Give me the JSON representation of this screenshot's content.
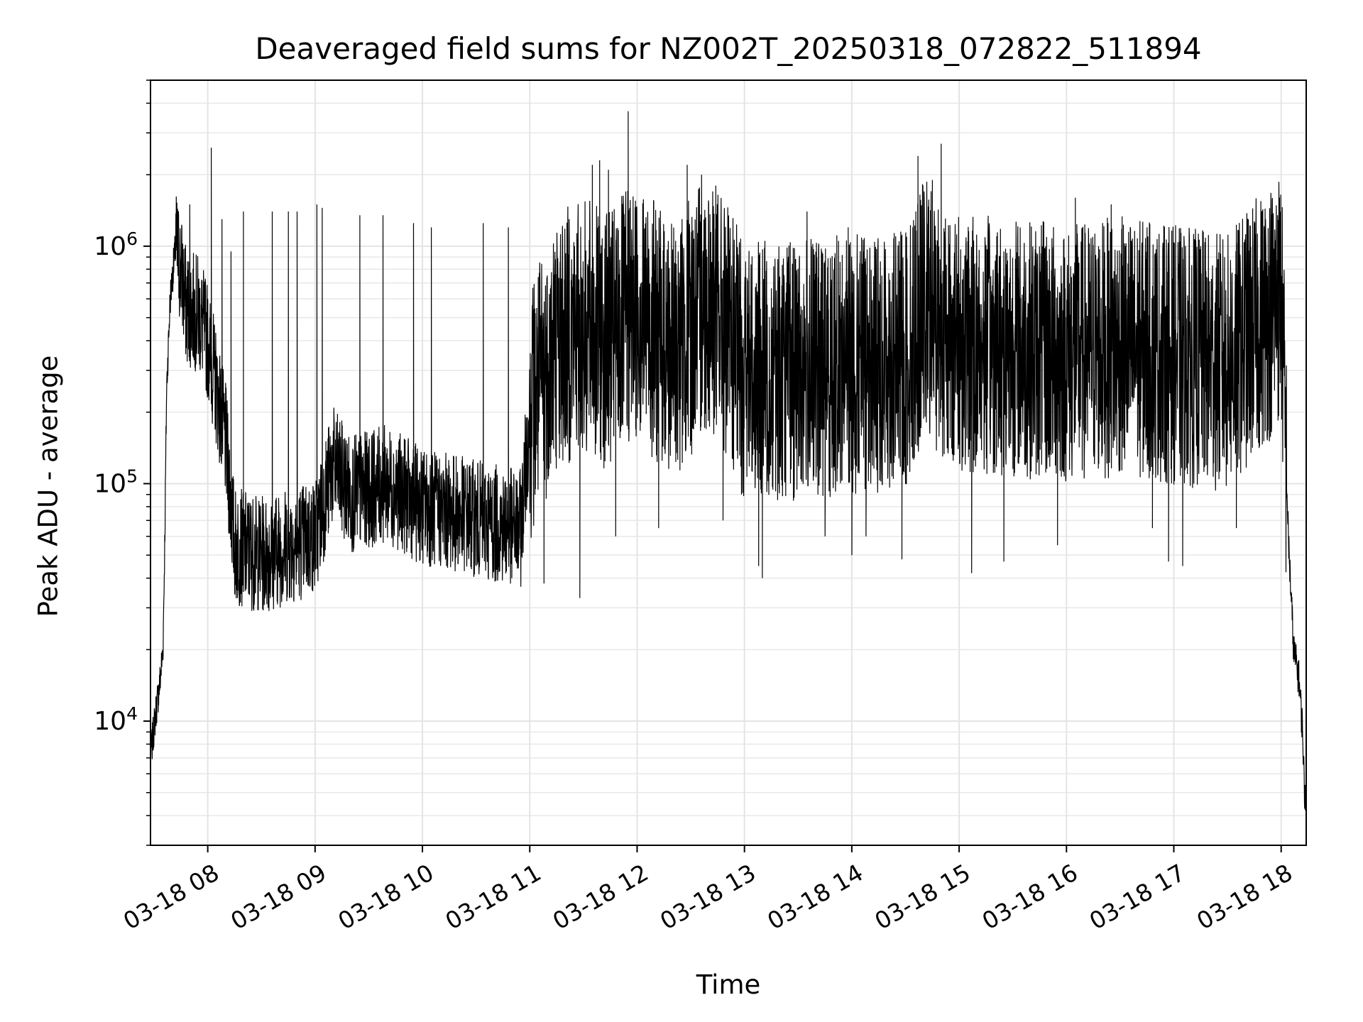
{
  "chart_data": {
    "type": "line",
    "title": "Deaveraged field sums for NZ002T_20250318_072822_511894",
    "xlabel": "Time",
    "ylabel": "Peak ADU - average",
    "yscale": "log",
    "ylim": [
      3000,
      5000000
    ],
    "xlim": [
      "2025-03-18 07:28",
      "2025-03-18 18:14"
    ],
    "grid": true,
    "line_color": "#000000",
    "x_ticks": [
      "03-18 08",
      "03-18 09",
      "03-18 10",
      "03-18 11",
      "03-18 12",
      "03-18 13",
      "03-18 14",
      "03-18 15",
      "03-18 16",
      "03-18 17",
      "03-18 18"
    ],
    "x_tick_values": [
      "2025-03-18 08:00",
      "2025-03-18 09:00",
      "2025-03-18 10:00",
      "2025-03-18 11:00",
      "2025-03-18 12:00",
      "2025-03-18 13:00",
      "2025-03-18 14:00",
      "2025-03-18 15:00",
      "2025-03-18 16:00",
      "2025-03-18 17:00",
      "2025-03-18 18:00"
    ],
    "y_ticks": [
      {
        "value": 10000,
        "base": "10",
        "exp": "4"
      },
      {
        "value": 100000,
        "base": "10",
        "exp": "5"
      },
      {
        "value": 1000000,
        "base": "10",
        "exp": "6"
      }
    ],
    "series": [
      {
        "points": [
          [
            "2025-03-18 07:28",
            7000
          ],
          [
            "2025-03-18 07:31",
            11000
          ],
          [
            "2025-03-18 07:33",
            14000
          ],
          [
            "2025-03-18 07:35",
            20000
          ],
          [
            "2025-03-18 07:36",
            60000
          ],
          [
            "2025-03-18 07:37",
            250000
          ],
          [
            "2025-03-18 07:39",
            600000
          ],
          [
            "2025-03-18 07:42",
            1000000
          ],
          [
            "2025-03-18 07:45",
            800000
          ],
          [
            "2025-03-18 07:48",
            550000
          ],
          [
            "2025-03-18 07:55",
            520000
          ],
          [
            "2025-03-18 08:00",
            400000
          ],
          [
            "2025-03-18 08:05",
            250000
          ],
          [
            "2025-03-18 08:10",
            150000
          ],
          [
            "2025-03-18 08:15",
            55000
          ],
          [
            "2025-03-18 08:30",
            50000
          ],
          [
            "2025-03-18 08:45",
            55000
          ],
          [
            "2025-03-18 09:00",
            60000
          ],
          [
            "2025-03-18 09:10",
            120000
          ],
          [
            "2025-03-18 09:20",
            90000
          ],
          [
            "2025-03-18 09:40",
            100000
          ],
          [
            "2025-03-18 10:00",
            80000
          ],
          [
            "2025-03-18 10:20",
            75000
          ],
          [
            "2025-03-18 10:40",
            68000
          ],
          [
            "2025-03-18 10:55",
            65000
          ],
          [
            "2025-03-18 11:00",
            200000
          ],
          [
            "2025-03-18 11:15",
            400000
          ],
          [
            "2025-03-18 11:30",
            450000
          ],
          [
            "2025-03-18 11:45",
            400000
          ],
          [
            "2025-03-18 12:00",
            550000
          ],
          [
            "2025-03-18 12:20",
            350000
          ],
          [
            "2025-03-18 12:40",
            600000
          ],
          [
            "2025-03-18 13:00",
            300000
          ],
          [
            "2025-03-18 13:30",
            300000
          ],
          [
            "2025-03-18 14:00",
            320000
          ],
          [
            "2025-03-18 14:30",
            330000
          ],
          [
            "2025-03-18 14:40",
            550000
          ],
          [
            "2025-03-18 15:00",
            380000
          ],
          [
            "2025-03-18 15:30",
            380000
          ],
          [
            "2025-03-18 16:00",
            350000
          ],
          [
            "2025-03-18 16:30",
            380000
          ],
          [
            "2025-03-18 17:00",
            350000
          ],
          [
            "2025-03-18 17:30",
            320000
          ],
          [
            "2025-03-18 17:55",
            550000
          ],
          [
            "2025-03-18 18:00",
            650000
          ],
          [
            "2025-03-18 18:04",
            60000
          ],
          [
            "2025-03-18 18:07",
            20000
          ],
          [
            "2025-03-18 18:10",
            15000
          ],
          [
            "2025-03-18 18:12",
            9000
          ],
          [
            "2025-03-18 18:13",
            5000
          ]
        ],
        "spikes": [
          [
            "2025-03-18 07:50",
            1500000
          ],
          [
            "2025-03-18 08:02",
            2600000
          ],
          [
            "2025-03-18 08:08",
            1300000
          ],
          [
            "2025-03-18 08:13",
            950000
          ],
          [
            "2025-03-18 08:20",
            1400000
          ],
          [
            "2025-03-18 08:36",
            1400000
          ],
          [
            "2025-03-18 08:45",
            1400000
          ],
          [
            "2025-03-18 08:50",
            1400000
          ],
          [
            "2025-03-18 09:01",
            1500000
          ],
          [
            "2025-03-18 09:04",
            1450000
          ],
          [
            "2025-03-18 09:25",
            1350000
          ],
          [
            "2025-03-18 09:38",
            1350000
          ],
          [
            "2025-03-18 09:55",
            1250000
          ],
          [
            "2025-03-18 10:05",
            1200000
          ],
          [
            "2025-03-18 10:34",
            1250000
          ],
          [
            "2025-03-18 10:48",
            1200000
          ],
          [
            "2025-03-18 11:22",
            1300000
          ],
          [
            "2025-03-18 11:35",
            2200000
          ],
          [
            "2025-03-18 11:39",
            2300000
          ],
          [
            "2025-03-18 11:44",
            2100000
          ],
          [
            "2025-03-18 11:55",
            3700000
          ],
          [
            "2025-03-18 12:28",
            2200000
          ],
          [
            "2025-03-18 12:36",
            2000000
          ],
          [
            "2025-03-18 12:44",
            1800000
          ],
          [
            "2025-03-18 13:35",
            1400000
          ],
          [
            "2025-03-18 13:58",
            1200000
          ],
          [
            "2025-03-18 14:37",
            2400000
          ],
          [
            "2025-03-18 14:45",
            1900000
          ],
          [
            "2025-03-18 14:50",
            2700000
          ],
          [
            "2025-03-18 16:05",
            1600000
          ],
          [
            "2025-03-18 16:25",
            1500000
          ],
          [
            "2025-03-18 16:45",
            1200000
          ],
          [
            "2025-03-18 17:15",
            1000000
          ],
          [
            "2025-03-18 17:58",
            1350000
          ]
        ],
        "dips": [
          [
            "2025-03-18 08:20",
            35000
          ],
          [
            "2025-03-18 08:35",
            33000
          ],
          [
            "2025-03-18 08:48",
            38000
          ],
          [
            "2025-03-18 09:30",
            55000
          ],
          [
            "2025-03-18 10:30",
            45000
          ],
          [
            "2025-03-18 10:50",
            40000
          ],
          [
            "2025-03-18 11:08",
            38000
          ],
          [
            "2025-03-18 11:28",
            33000
          ],
          [
            "2025-03-18 11:48",
            60000
          ],
          [
            "2025-03-18 12:12",
            65000
          ],
          [
            "2025-03-18 12:48",
            70000
          ],
          [
            "2025-03-18 13:08",
            45000
          ],
          [
            "2025-03-18 13:10",
            40000
          ],
          [
            "2025-03-18 13:45",
            60000
          ],
          [
            "2025-03-18 14:00",
            50000
          ],
          [
            "2025-03-18 14:08",
            60000
          ],
          [
            "2025-03-18 14:28",
            48000
          ],
          [
            "2025-03-18 15:07",
            42000
          ],
          [
            "2025-03-18 15:25",
            47000
          ],
          [
            "2025-03-18 15:55",
            55000
          ],
          [
            "2025-03-18 16:48",
            65000
          ],
          [
            "2025-03-18 16:57",
            47000
          ],
          [
            "2025-03-18 17:05",
            45000
          ],
          [
            "2025-03-18 17:35",
            65000
          ]
        ]
      }
    ]
  }
}
